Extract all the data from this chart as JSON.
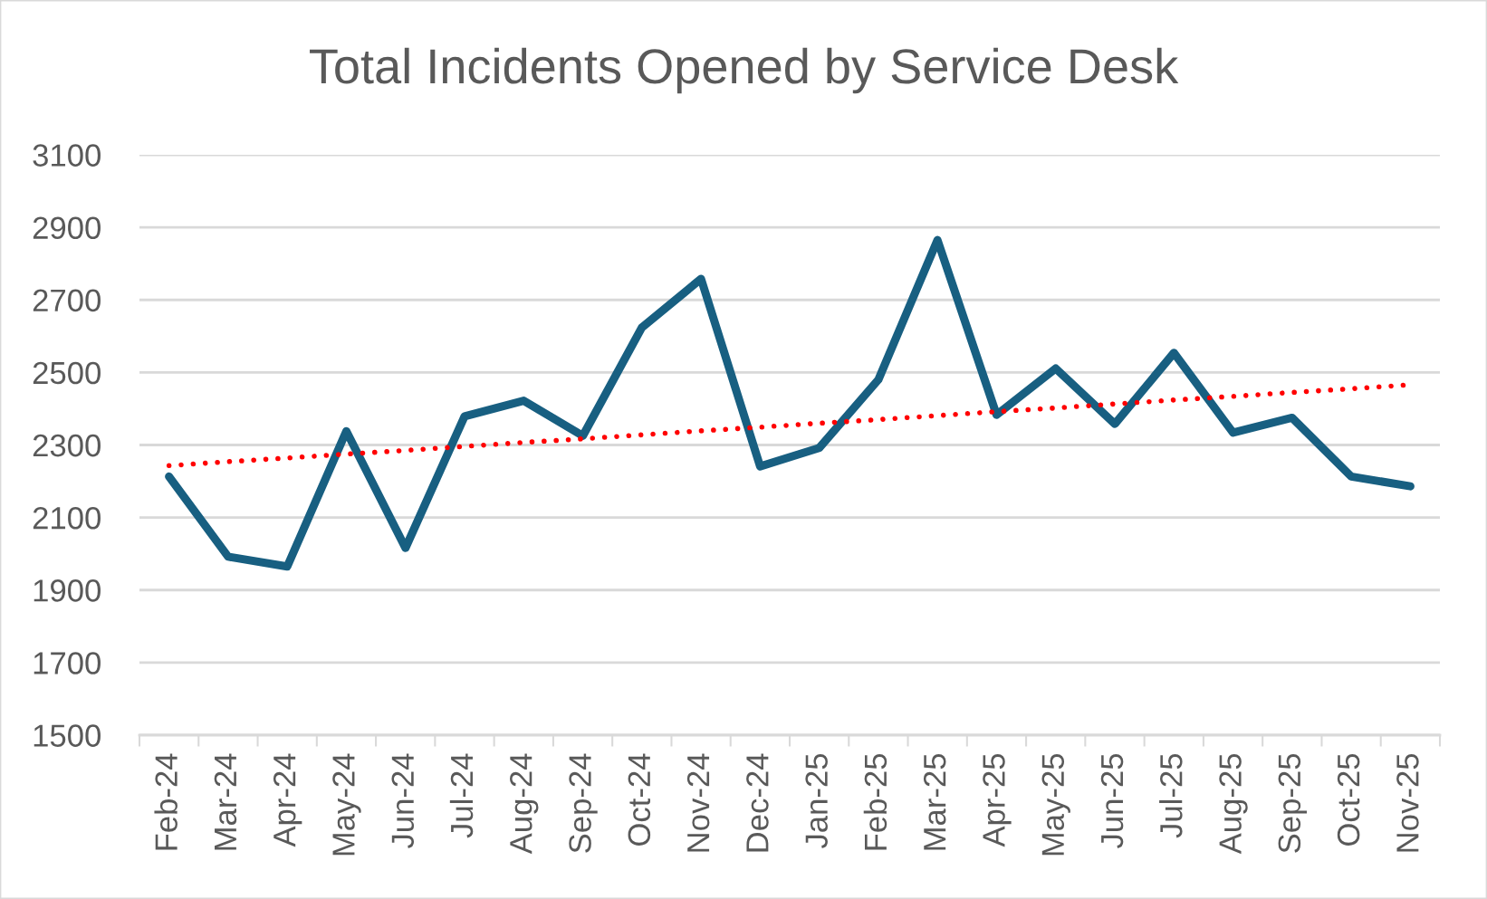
{
  "chart_data": {
    "type": "line",
    "title": "Total Incidents Opened by Service Desk",
    "categories": [
      "Feb-24",
      "Mar-24",
      "Apr-24",
      "May-24",
      "Jun-24",
      "Jul-24",
      "Aug-24",
      "Sep-24",
      "Oct-24",
      "Nov-24",
      "Dec-24",
      "Jan-25",
      "Feb-25",
      "Mar-25",
      "Apr-25",
      "May-25",
      "Jun-25",
      "Jul-25",
      "Aug-25",
      "Sep-25",
      "Oct-25",
      "Nov-25"
    ],
    "series": [
      {
        "color": "#185f81",
        "line_style": "solid",
        "values": [
          2213,
          1992,
          1965,
          2338,
          2016,
          2379,
          2422,
          2325,
          2624,
          2758,
          2241,
          2292,
          2480,
          2865,
          2383,
          2511,
          2358,
          2554,
          2334,
          2375,
          2213,
          2186
        ]
      },
      {
        "type": "line",
        "color": "#ff0000",
        "line_style": "dotted",
        "values": [
          2243,
          2254,
          2264,
          2275,
          2285,
          2296,
          2307,
          2317,
          2328,
          2339,
          2349,
          2360,
          2370,
          2381,
          2392,
          2402,
          2413,
          2424,
          2434,
          2445,
          2455,
          2466
        ]
      }
    ],
    "ylim": [
      1500,
      3100
    ],
    "yticks": [
      1500,
      1700,
      1900,
      2100,
      2300,
      2500,
      2700,
      2900,
      3100
    ],
    "grid": "y"
  }
}
